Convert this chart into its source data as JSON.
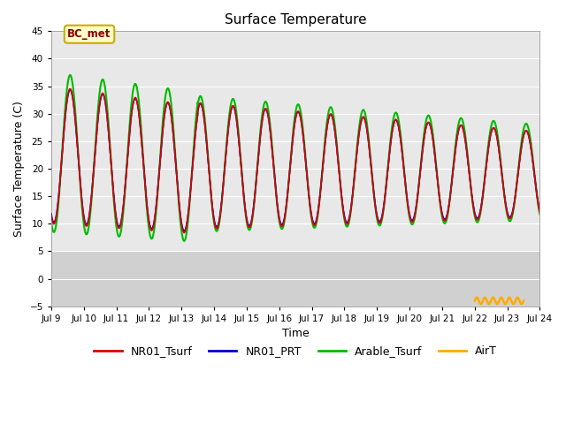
{
  "title": "Surface Temperature",
  "xlabel": "Time",
  "ylabel": "Surface Temperature (C)",
  "ylim": [
    -5,
    45
  ],
  "xlim": [
    0,
    15
  ],
  "yticks": [
    -5,
    0,
    5,
    10,
    15,
    20,
    25,
    30,
    35,
    40,
    45
  ],
  "xtick_labels": [
    "Jul 9",
    "Jul 10",
    "Jul 11",
    "Jul 12",
    "Jul 13",
    "Jul 14",
    "Jul 15",
    "Jul 16",
    "Jul 17",
    "Jul 18",
    "Jul 19",
    "Jul 20",
    "Jul 21",
    "Jul 22",
    "Jul 23",
    "Jul 24"
  ],
  "bg_color_plot": "#e8e8e8",
  "bg_color_below5": "#d0d0d0",
  "annotation_label": "BC_met",
  "annotation_bg": "#ffffcc",
  "annotation_border": "#ccaa00",
  "annotation_text_color": "#880000",
  "colors": {
    "NR01_Tsurf": "#dd0000",
    "NR01_PRT": "#0000cc",
    "Arable_Tsurf": "#00bb00",
    "AirT": "#ffaa00"
  },
  "linewidths": {
    "NR01_Tsurf": 1.2,
    "NR01_PRT": 1.2,
    "Arable_Tsurf": 1.5,
    "AirT": 1.8
  },
  "legend_labels": [
    "NR01_Tsurf",
    "NR01_PRT",
    "Arable_Tsurf",
    "AirT"
  ]
}
